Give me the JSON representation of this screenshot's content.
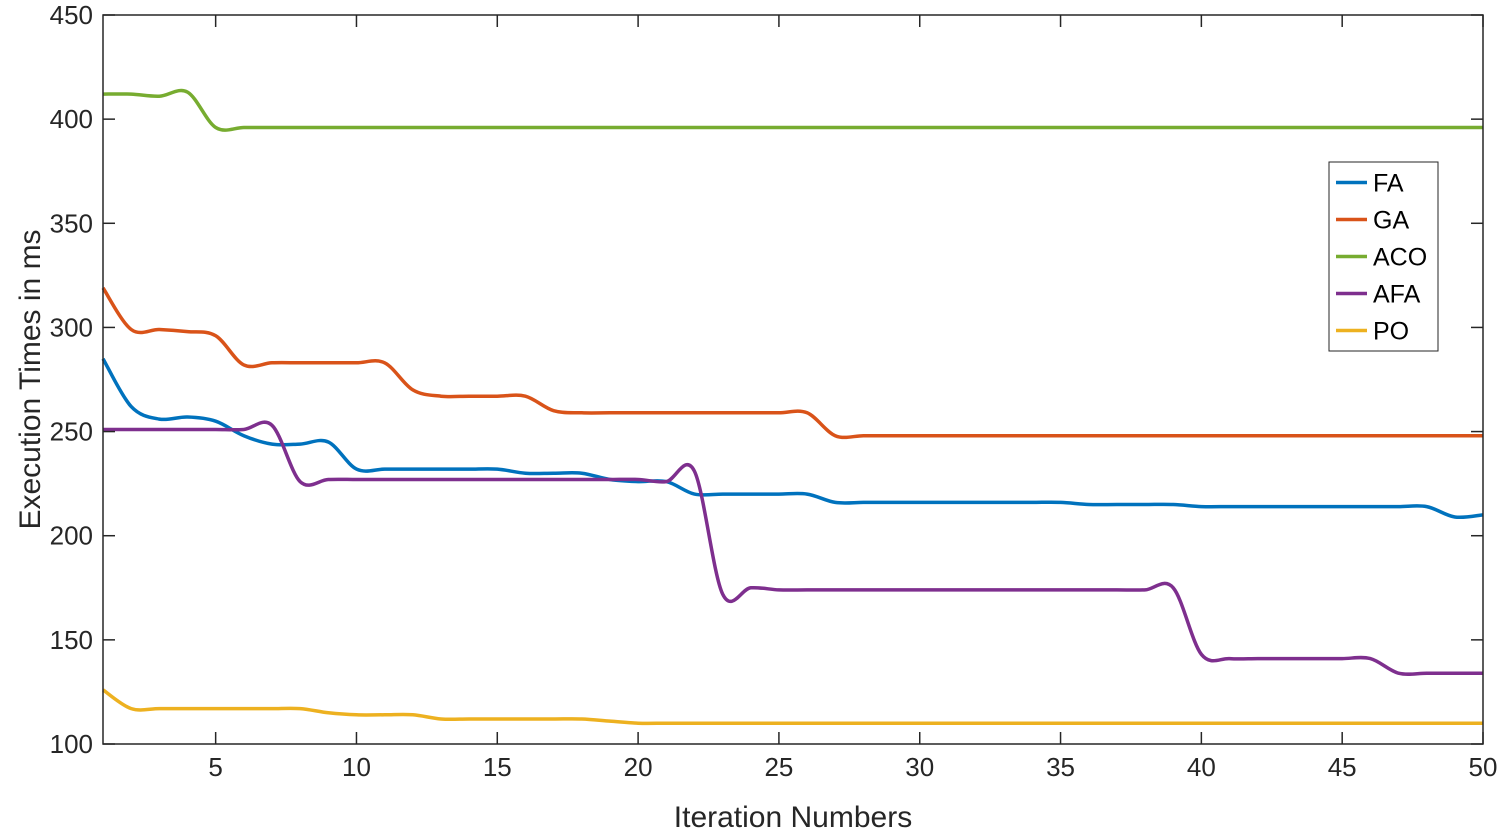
{
  "chart_data": {
    "type": "line",
    "xlabel": "Iteration Numbers",
    "ylabel": "Execution Times in ms",
    "xlim": [
      1,
      50
    ],
    "ylim": [
      100,
      450
    ],
    "xticks": [
      5,
      10,
      15,
      20,
      25,
      30,
      35,
      40,
      45,
      50
    ],
    "yticks": [
      100,
      150,
      200,
      250,
      300,
      350,
      400,
      450
    ],
    "grid": false,
    "legend_position": "top-right",
    "x": [
      1,
      2,
      3,
      4,
      5,
      6,
      7,
      8,
      9,
      10,
      11,
      12,
      13,
      14,
      15,
      16,
      17,
      18,
      19,
      20,
      21,
      22,
      23,
      24,
      25,
      26,
      27,
      28,
      29,
      30,
      31,
      32,
      33,
      34,
      35,
      36,
      37,
      38,
      39,
      40,
      41,
      42,
      43,
      44,
      45,
      46,
      47,
      48,
      49,
      50
    ],
    "series": [
      {
        "name": "FA",
        "color": "#0072BD",
        "values": [
          285,
          262,
          256,
          257,
          255,
          248,
          244,
          244,
          245,
          232,
          232,
          232,
          232,
          232,
          232,
          230,
          230,
          230,
          227,
          226,
          226,
          220,
          220,
          220,
          220,
          220,
          216,
          216,
          216,
          216,
          216,
          216,
          216,
          216,
          216,
          215,
          215,
          215,
          215,
          214,
          214,
          214,
          214,
          214,
          214,
          214,
          214,
          214,
          209,
          210
        ]
      },
      {
        "name": "GA",
        "color": "#D95319",
        "values": [
          319,
          299,
          299,
          298,
          296,
          282,
          283,
          283,
          283,
          283,
          283,
          270,
          267,
          267,
          267,
          267,
          260,
          259,
          259,
          259,
          259,
          259,
          259,
          259,
          259,
          259,
          248,
          248,
          248,
          248,
          248,
          248,
          248,
          248,
          248,
          248,
          248,
          248,
          248,
          248,
          248,
          248,
          248,
          248,
          248,
          248,
          248,
          248,
          248,
          248
        ]
      },
      {
        "name": "ACO",
        "color": "#77AC30",
        "values": [
          412,
          412,
          411,
          413,
          396,
          396,
          396,
          396,
          396,
          396,
          396,
          396,
          396,
          396,
          396,
          396,
          396,
          396,
          396,
          396,
          396,
          396,
          396,
          396,
          396,
          396,
          396,
          396,
          396,
          396,
          396,
          396,
          396,
          396,
          396,
          396,
          396,
          396,
          396,
          396,
          396,
          396,
          396,
          396,
          396,
          396,
          396,
          396,
          396,
          396
        ]
      },
      {
        "name": "AFA",
        "color": "#7E2F8E",
        "values": [
          251,
          251,
          251,
          251,
          251,
          251,
          253,
          226,
          227,
          227,
          227,
          227,
          227,
          227,
          227,
          227,
          227,
          227,
          227,
          227,
          226,
          231,
          172,
          175,
          174,
          174,
          174,
          174,
          174,
          174,
          174,
          174,
          174,
          174,
          174,
          174,
          174,
          174,
          175,
          143,
          141,
          141,
          141,
          141,
          141,
          141,
          134,
          134,
          134,
          134
        ]
      },
      {
        "name": "PO",
        "color": "#EDB120",
        "values": [
          126,
          117,
          117,
          117,
          117,
          117,
          117,
          117,
          115,
          114,
          114,
          114,
          112,
          112,
          112,
          112,
          112,
          112,
          111,
          110,
          110,
          110,
          110,
          110,
          110,
          110,
          110,
          110,
          110,
          110,
          110,
          110,
          110,
          110,
          110,
          110,
          110,
          110,
          110,
          110,
          110,
          110,
          110,
          110,
          110,
          110,
          110,
          110,
          110,
          110
        ]
      }
    ]
  }
}
